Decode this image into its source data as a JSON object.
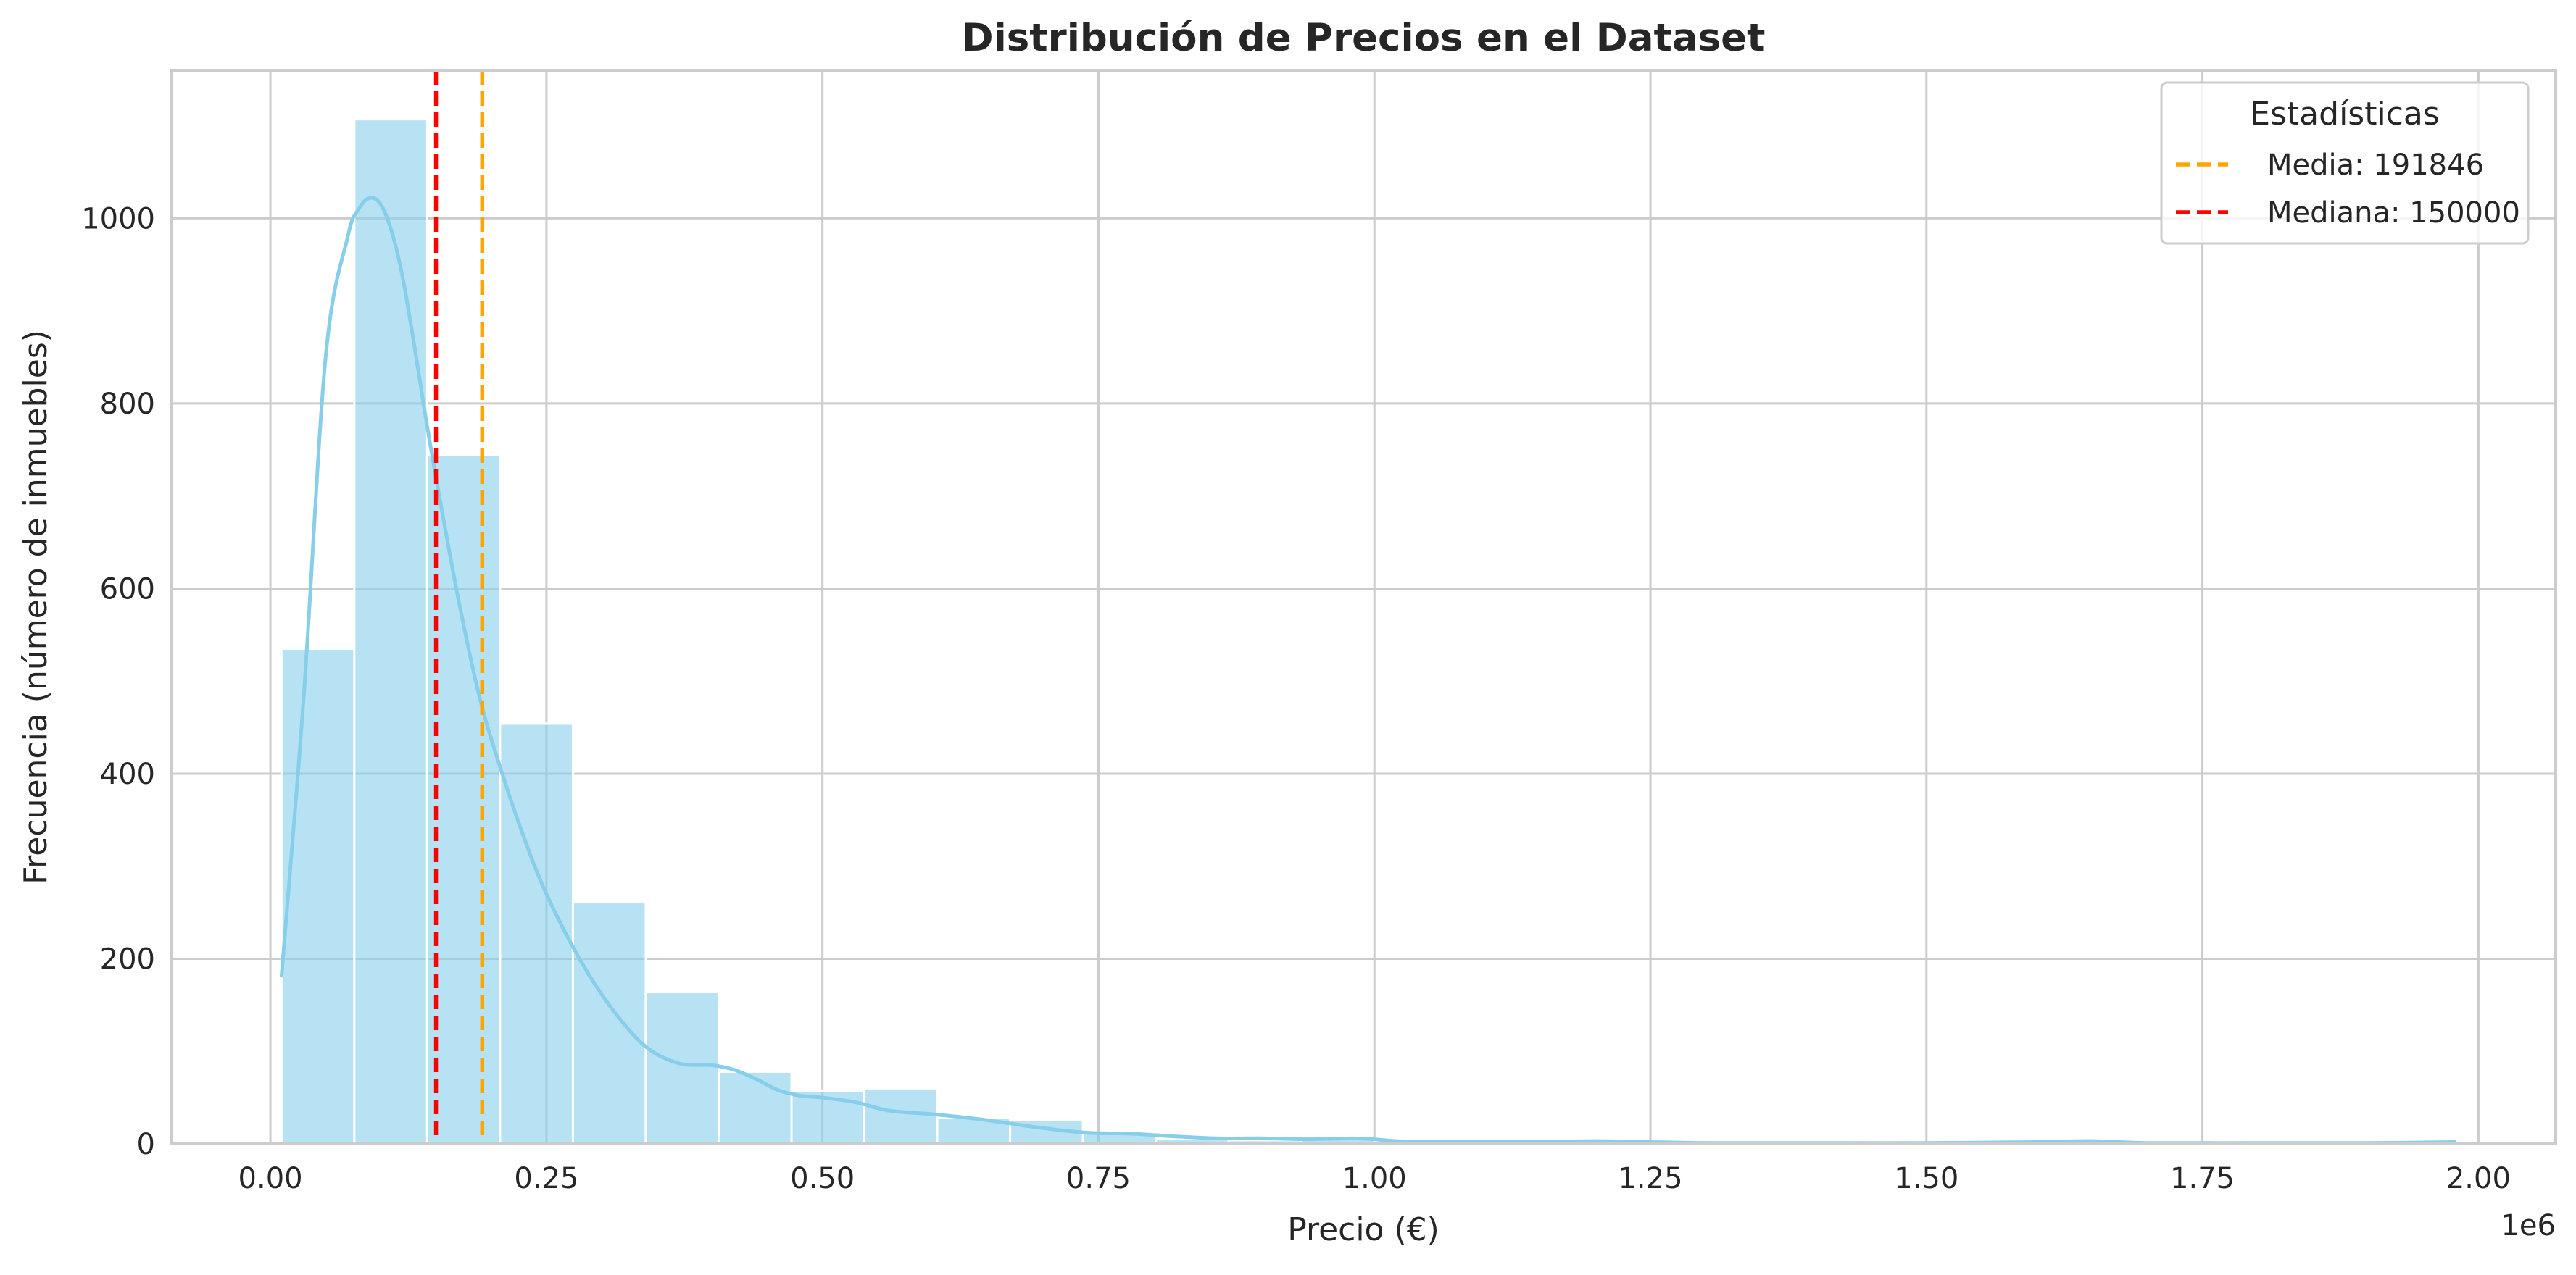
{
  "chart_data": {
    "type": "bar",
    "title": "Distribución de Precios en el Dataset",
    "xlabel": "Precio (€)",
    "ylabel": "Frecuencia (número de inmuebles)",
    "x_offset_label": "1e6",
    "xlim": [
      -0.09,
      2.07
    ],
    "ylim": [
      0,
      1160
    ],
    "x_ticks": [
      0.0,
      0.25,
      0.5,
      0.75,
      1.0,
      1.25,
      1.5,
      1.75,
      2.0
    ],
    "x_tick_labels": [
      "0.00",
      "0.25",
      "0.50",
      "0.75",
      "1.00",
      "1.25",
      "1.50",
      "1.75",
      "2.00"
    ],
    "y_ticks": [
      0,
      200,
      400,
      600,
      800,
      1000
    ],
    "y_tick_labels": [
      "0",
      "200",
      "400",
      "600",
      "800",
      "1000"
    ],
    "grid": true,
    "bin_width": 0.066,
    "bins": [
      {
        "start": 0.01,
        "count": 535
      },
      {
        "start": 0.076,
        "count": 1107
      },
      {
        "start": 0.142,
        "count": 744
      },
      {
        "start": 0.208,
        "count": 454
      },
      {
        "start": 0.274,
        "count": 261
      },
      {
        "start": 0.34,
        "count": 164
      },
      {
        "start": 0.406,
        "count": 78
      },
      {
        "start": 0.472,
        "count": 57
      },
      {
        "start": 0.538,
        "count": 60
      },
      {
        "start": 0.604,
        "count": 28
      },
      {
        "start": 0.67,
        "count": 26
      },
      {
        "start": 0.736,
        "count": 12
      },
      {
        "start": 0.802,
        "count": 5
      },
      {
        "start": 0.868,
        "count": 4
      },
      {
        "start": 0.934,
        "count": 6
      },
      {
        "start": 1.0,
        "count": 2
      },
      {
        "start": 1.066,
        "count": 1
      },
      {
        "start": 1.132,
        "count": 1
      },
      {
        "start": 1.198,
        "count": 2
      },
      {
        "start": 1.264,
        "count": 1
      },
      {
        "start": 1.33,
        "count": 1
      },
      {
        "start": 1.396,
        "count": 1
      },
      {
        "start": 1.462,
        "count": 1
      },
      {
        "start": 1.528,
        "count": 1
      },
      {
        "start": 1.594,
        "count": 1
      },
      {
        "start": 1.66,
        "count": 2
      },
      {
        "start": 1.726,
        "count": 1
      },
      {
        "start": 1.792,
        "count": 1
      },
      {
        "start": 1.858,
        "count": 1
      },
      {
        "start": 1.924,
        "count": 2
      }
    ],
    "kde": {
      "x": [
        0.01,
        0.03,
        0.05,
        0.07,
        0.08,
        0.09,
        0.1,
        0.11,
        0.12,
        0.13,
        0.14,
        0.15,
        0.17,
        0.19,
        0.21,
        0.23,
        0.25,
        0.28,
        0.31,
        0.34,
        0.37,
        0.4,
        0.42,
        0.44,
        0.46,
        0.48,
        0.5,
        0.53,
        0.56,
        0.6,
        0.64,
        0.67,
        0.7,
        0.74,
        0.78,
        0.82,
        0.86,
        0.9,
        0.94,
        0.98,
        1.0,
        1.02,
        1.06,
        1.1,
        1.15,
        1.2,
        1.25,
        1.3,
        1.4,
        1.5,
        1.6,
        1.65,
        1.7,
        1.8,
        1.9,
        1.98
      ],
      "y": [
        180,
        480,
        850,
        980,
        1010,
        1022,
        1015,
        985,
        935,
        865,
        790,
        720,
        590,
        480,
        400,
        330,
        270,
        200,
        145,
        105,
        87,
        85,
        80,
        70,
        58,
        52,
        50,
        45,
        36,
        32,
        27,
        22,
        17,
        12,
        11,
        8,
        6,
        6,
        5,
        6,
        5,
        3,
        2,
        2,
        2,
        3,
        2,
        1,
        1,
        1,
        2,
        3,
        1,
        1,
        1,
        2
      ]
    },
    "bar_color": "#87ceeb",
    "kde_color": "#87ceeb",
    "lines": [
      {
        "label": "Media: 191846",
        "x": 0.191846,
        "color": "#ffa500"
      },
      {
        "label": "Mediana: 150000",
        "x": 0.15,
        "color": "#ff0000"
      }
    ],
    "legend": {
      "title": "Estadísticas",
      "position": "top-right"
    }
  }
}
